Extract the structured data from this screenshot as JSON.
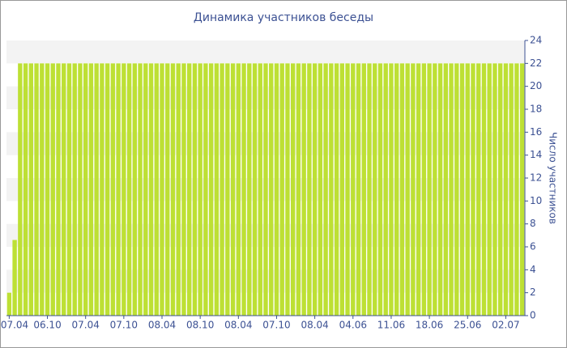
{
  "chart_data": {
    "type": "bar",
    "title": "Динамика участников беседы",
    "y_label": "Число участников",
    "color": "#bde034",
    "grid": true,
    "categories": [
      "07.04",
      null,
      null,
      null,
      null,
      null,
      null,
      "06.10",
      null,
      null,
      null,
      null,
      null,
      null,
      "07.04",
      null,
      null,
      null,
      null,
      null,
      null,
      "07.10",
      null,
      null,
      null,
      null,
      null,
      null,
      "08.04",
      null,
      null,
      null,
      null,
      null,
      null,
      "08.10",
      null,
      null,
      null,
      null,
      null,
      null,
      "08.04",
      null,
      null,
      null,
      null,
      null,
      null,
      "07.10",
      null,
      null,
      null,
      null,
      null,
      null,
      "08.04",
      null,
      null,
      null,
      null,
      null,
      null,
      "04.06",
      null,
      null,
      null,
      null,
      null,
      null,
      "11.06",
      null,
      null,
      null,
      null,
      null,
      null,
      "18.06",
      null,
      null,
      null,
      null,
      null,
      null,
      "25.06",
      null,
      null,
      null,
      null,
      null,
      null,
      "02.07",
      null,
      null,
      null
    ],
    "values": [
      2,
      6.6,
      22,
      22,
      22,
      22,
      22,
      22,
      22,
      22,
      22,
      22,
      22,
      22,
      22,
      22,
      22,
      22,
      22,
      22,
      22,
      22,
      22,
      22,
      22,
      22,
      22,
      22,
      22,
      22,
      22,
      22,
      22,
      22,
      22,
      22,
      22,
      22,
      22,
      22,
      22,
      22,
      22,
      22,
      22,
      22,
      22,
      22,
      22,
      22,
      22,
      22,
      22,
      22,
      22,
      22,
      22,
      22,
      22,
      22,
      22,
      22,
      22,
      22,
      22,
      22,
      22,
      22,
      22,
      22,
      22,
      22,
      22,
      22,
      22,
      22,
      22,
      22,
      22,
      22,
      22,
      22,
      22,
      22,
      22,
      22,
      22,
      22,
      22,
      22,
      22,
      22,
      22,
      22,
      22
    ],
    "ylim": [
      0,
      24
    ],
    "yticks": [
      0,
      2,
      4,
      6,
      8,
      10,
      12,
      14,
      16,
      18,
      20,
      22,
      24
    ]
  }
}
